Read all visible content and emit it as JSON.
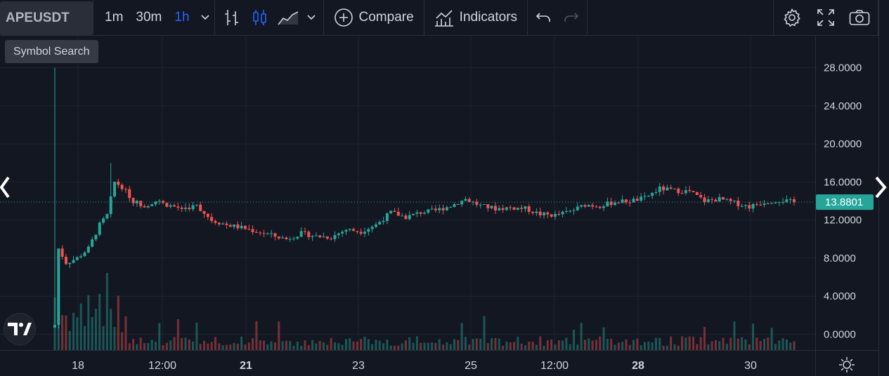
{
  "symbol": "APEUSDT",
  "tooltip": "Symbol Search",
  "timeframes": [
    {
      "label": "1m",
      "active": false
    },
    {
      "label": "30m",
      "active": false
    },
    {
      "label": "1h",
      "active": true
    }
  ],
  "toolbar": {
    "compare_label": "Compare",
    "indicators_label": "Indicators"
  },
  "icons": {
    "timeframe_menu": "chevron-down-icon",
    "bar_style": "ohlc-bars-icon",
    "candle_style": "candlestick-icon",
    "area_style": "area-chart-icon",
    "style_menu": "chevron-down-icon",
    "compare": "plus-circle-icon",
    "indicators": "indicators-icon",
    "undo": "undo-icon",
    "redo": "redo-icon",
    "settings": "gear-icon",
    "fullscreen": "fullscreen-icon",
    "snapshot": "camera-icon",
    "scroll_left": "chevron-left-icon",
    "scroll_right": "chevron-right-icon",
    "logo": "tradingview-logo-icon",
    "scale_settings": "gear-icon"
  },
  "colors": {
    "background": "#131722",
    "up": "#26a69a",
    "down": "#ef5350",
    "accent": "#2962ff",
    "last_price_bg": "#26a69a"
  },
  "price_scale": [
    "28.0000",
    "24.0000",
    "20.0000",
    "16.0000",
    "12.0000",
    "8.0000",
    "4.0000",
    "0.0000"
  ],
  "last_price": "13.8801",
  "time_scale": [
    {
      "label": "18",
      "bold": false
    },
    {
      "label": "12:00",
      "bold": false
    },
    {
      "label": "21",
      "bold": true
    },
    {
      "label": "23",
      "bold": false
    },
    {
      "label": "25",
      "bold": false
    },
    {
      "label": "12:00",
      "bold": false
    },
    {
      "label": "28",
      "bold": true
    },
    {
      "label": "30",
      "bold": false
    }
  ],
  "chart_data": {
    "type": "candlestick",
    "interval": "1h",
    "y_range": [
      0,
      30
    ],
    "last_price": 13.8801,
    "close_path": [
      [
        0,
        1.0
      ],
      [
        1,
        9.0
      ],
      [
        3,
        7.5
      ],
      [
        6,
        8.0
      ],
      [
        9,
        9.0
      ],
      [
        12,
        11.5
      ],
      [
        14,
        12.5
      ],
      [
        16,
        16.0
      ],
      [
        18,
        15.5
      ],
      [
        21,
        14.0
      ],
      [
        24,
        13.5
      ],
      [
        27,
        14.0
      ],
      [
        30,
        13.6
      ],
      [
        34,
        13.2
      ],
      [
        38,
        13.5
      ],
      [
        42,
        12.0
      ],
      [
        46,
        11.5
      ],
      [
        50,
        11.2
      ],
      [
        56,
        10.6
      ],
      [
        62,
        10.0
      ],
      [
        66,
        10.6
      ],
      [
        70,
        10.3
      ],
      [
        74,
        10.2
      ],
      [
        78,
        11.0
      ],
      [
        82,
        10.8
      ],
      [
        86,
        11.5
      ],
      [
        90,
        12.8
      ],
      [
        94,
        12.3
      ],
      [
        98,
        12.8
      ],
      [
        102,
        13.0
      ],
      [
        106,
        13.5
      ],
      [
        110,
        14.2
      ],
      [
        114,
        13.5
      ],
      [
        118,
        13.2
      ],
      [
        122,
        13.3
      ],
      [
        126,
        13.2
      ],
      [
        130,
        12.6
      ],
      [
        134,
        12.5
      ],
      [
        138,
        12.9
      ],
      [
        142,
        13.6
      ],
      [
        146,
        13.5
      ],
      [
        150,
        13.9
      ],
      [
        154,
        14.0
      ],
      [
        158,
        14.3
      ],
      [
        162,
        15.3
      ],
      [
        166,
        15.1
      ],
      [
        170,
        15.0
      ],
      [
        174,
        14.0
      ],
      [
        178,
        14.2
      ],
      [
        182,
        13.8
      ],
      [
        186,
        13.4
      ],
      [
        190,
        13.9
      ],
      [
        194,
        14.1
      ],
      [
        198,
        13.88
      ]
    ]
  }
}
